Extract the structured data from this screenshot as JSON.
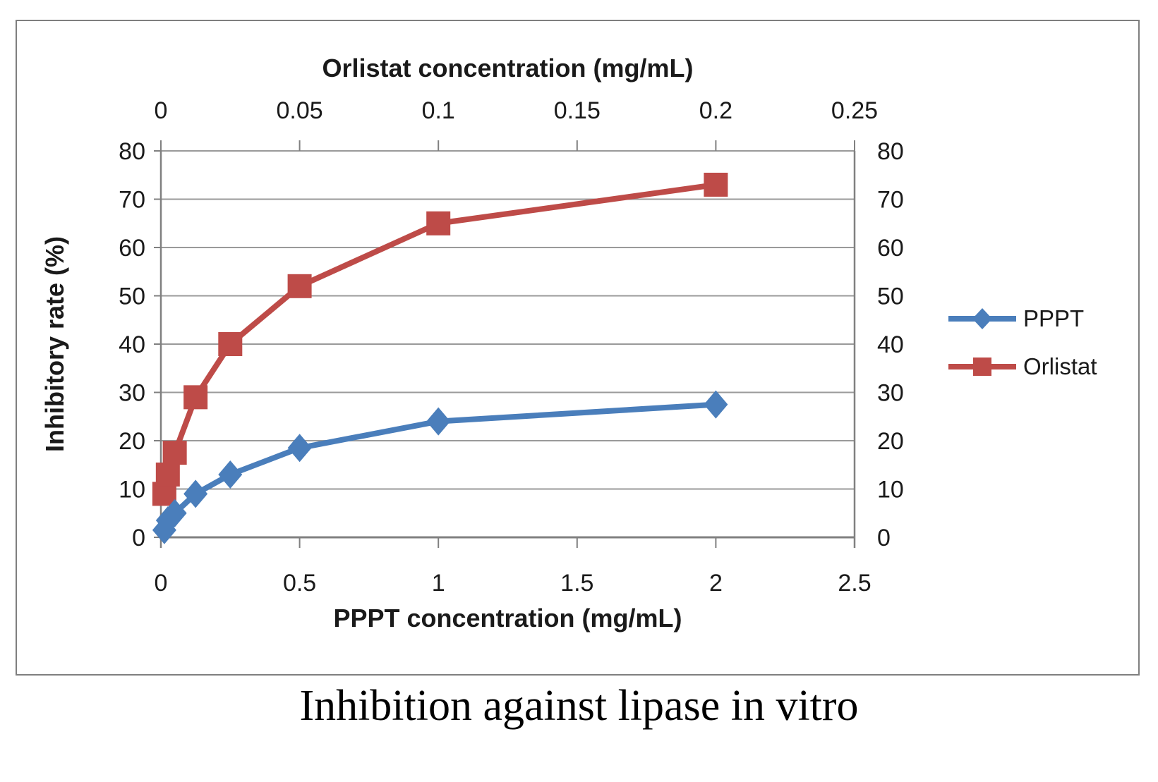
{
  "caption": "Inhibition against lipase in vitro",
  "legend": {
    "items": [
      {
        "label": "PPPT",
        "color": "#4A7EBB",
        "marker": "diamond"
      },
      {
        "label": "Orlistat",
        "color": "#BE4B48",
        "marker": "square"
      }
    ]
  },
  "chart_data": {
    "type": "line",
    "grid": "horizontal",
    "legend_position": "right",
    "axes": {
      "top_x": {
        "label": "Orlistat concentration (mg/mL)",
        "range": [
          0,
          0.25
        ],
        "ticks": [
          0,
          0.05,
          0.1,
          0.15,
          0.2,
          0.25
        ]
      },
      "bottom_x": {
        "label": "PPPT concentration (mg/mL)",
        "range": [
          0,
          2.5
        ],
        "ticks": [
          0,
          0.5,
          1,
          1.5,
          2,
          2.5
        ]
      },
      "left_y": {
        "label": "Inhibitory rate (%)",
        "range": [
          0,
          80
        ],
        "ticks": [
          0,
          10,
          20,
          30,
          40,
          50,
          60,
          70,
          80
        ]
      },
      "right_y": {
        "label": "",
        "range": [
          0,
          80
        ],
        "ticks": [
          0,
          10,
          20,
          30,
          40,
          50,
          60,
          70,
          80
        ]
      }
    },
    "series": [
      {
        "name": "PPPT",
        "axis": "bottom_x",
        "color": "#4A7EBB",
        "marker": "diamond",
        "points": [
          {
            "x": 0.0125,
            "y": 1.5
          },
          {
            "x": 0.025,
            "y": 3.5
          },
          {
            "x": 0.05,
            "y": 5
          },
          {
            "x": 0.125,
            "y": 9
          },
          {
            "x": 0.25,
            "y": 13
          },
          {
            "x": 0.5,
            "y": 18.5
          },
          {
            "x": 1,
            "y": 24
          },
          {
            "x": 2,
            "y": 27.5
          }
        ]
      },
      {
        "name": "Orlistat",
        "axis": "top_x",
        "color": "#BE4B48",
        "marker": "square",
        "points": [
          {
            "x": 0.00125,
            "y": 9
          },
          {
            "x": 0.0025,
            "y": 13
          },
          {
            "x": 0.005,
            "y": 17.5
          },
          {
            "x": 0.0125,
            "y": 29
          },
          {
            "x": 0.025,
            "y": 40
          },
          {
            "x": 0.05,
            "y": 52
          },
          {
            "x": 0.1,
            "y": 65
          },
          {
            "x": 0.2,
            "y": 73
          }
        ]
      }
    ]
  }
}
